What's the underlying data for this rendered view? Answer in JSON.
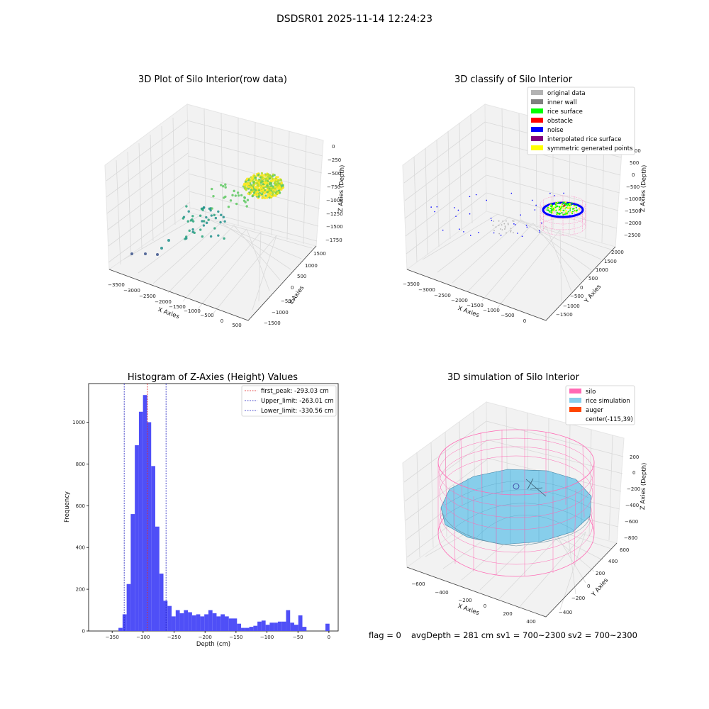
{
  "figure": {
    "suptitle": "DSDSR01 2025-11-14 12:24:23",
    "status_line": {
      "flag": "flag = 0",
      "avg_depth": "avgDepth = 281 cm",
      "sv1": "sv1 = 700~2300",
      "sv2": "sv2 = 700~2300"
    }
  },
  "chart_data": [
    {
      "type": "scatter",
      "title": "3D Plot of Silo Interior(row data)",
      "xlabel": "X Axies",
      "ylabel": "Y Axies",
      "zlabel": "Z Axies (Depth)",
      "x_ticks": [
        "−3500",
        "−3000",
        "−2500",
        "−2000",
        "−1500",
        "−1000",
        "−500",
        "0",
        "500"
      ],
      "y_ticks": [
        "−1500",
        "−1000",
        "−500",
        "0",
        "500",
        "1000",
        "1500"
      ],
      "z_ticks": [
        "0",
        "−250",
        "−500",
        "−750",
        "−1000",
        "−1250",
        "−1500",
        "−1750"
      ],
      "grid": true,
      "colormap": [
        "#440154",
        "#3b528b",
        "#21918c",
        "#5ec962",
        "#fde725"
      ]
    },
    {
      "type": "scatter",
      "title": "3D classify of Silo Interior",
      "xlabel": "X Axies",
      "ylabel": "Y Axies",
      "zlabel": "Z Axies (Depth)",
      "x_ticks": [
        "−3500",
        "−3000",
        "−2500",
        "−2000",
        "−1500",
        "−1000",
        "−500",
        "0"
      ],
      "y_ticks": [
        "−1500",
        "−1000",
        "−500",
        "0",
        "500",
        "1000",
        "1500",
        "2000"
      ],
      "z_ticks": [
        "1000",
        "500",
        "0",
        "−500",
        "−1000",
        "−1500",
        "−2000",
        "−2500"
      ],
      "grid": true,
      "legend_position": "top-right",
      "legend": [
        {
          "label": "original data",
          "color": "#b3b3b3"
        },
        {
          "label": "inner wall",
          "color": "#808080"
        },
        {
          "label": "rice surface",
          "color": "#00ff00"
        },
        {
          "label": "obstacle",
          "color": "#ff0000"
        },
        {
          "label": "noise",
          "color": "#0000ff"
        },
        {
          "label": "interpolated rice surface",
          "color": "#800080"
        },
        {
          "label": "symmetric generated points",
          "color": "#ffff00"
        }
      ]
    },
    {
      "type": "bar",
      "title": "Histogram of Z-Axies (Height) Values",
      "xlabel": "Depth (cm)",
      "ylabel": "Frequency",
      "xlim": [
        -388,
        15
      ],
      "ylim": [
        0,
        1185
      ],
      "x_ticks": [
        -350,
        -300,
        -250,
        -200,
        -150,
        -100,
        -50,
        0
      ],
      "y_ticks": [
        0,
        200,
        400,
        600,
        800,
        1000
      ],
      "bin_width": 6.6,
      "bins": [
        {
          "x": -336.5,
          "v": 15
        },
        {
          "x": -329.9,
          "v": 80
        },
        {
          "x": -323.3,
          "v": 225
        },
        {
          "x": -316.7,
          "v": 560
        },
        {
          "x": -310.1,
          "v": 890
        },
        {
          "x": -303.5,
          "v": 1050
        },
        {
          "x": -296.9,
          "v": 1130
        },
        {
          "x": -290.3,
          "v": 1000
        },
        {
          "x": -283.7,
          "v": 790
        },
        {
          "x": -277.1,
          "v": 500
        },
        {
          "x": -270.5,
          "v": 275
        },
        {
          "x": -263.9,
          "v": 145
        },
        {
          "x": -257.3,
          "v": 120
        },
        {
          "x": -250.7,
          "v": 70
        },
        {
          "x": -244.1,
          "v": 100
        },
        {
          "x": -237.5,
          "v": 85
        },
        {
          "x": -230.9,
          "v": 100
        },
        {
          "x": -224.3,
          "v": 90
        },
        {
          "x": -217.7,
          "v": 75
        },
        {
          "x": -211.1,
          "v": 80
        },
        {
          "x": -204.5,
          "v": 70
        },
        {
          "x": -197.9,
          "v": 80
        },
        {
          "x": -191.3,
          "v": 100
        },
        {
          "x": -184.7,
          "v": 85
        },
        {
          "x": -178.1,
          "v": 70
        },
        {
          "x": -171.5,
          "v": 80
        },
        {
          "x": -164.9,
          "v": 70
        },
        {
          "x": -158.3,
          "v": 60
        },
        {
          "x": -151.7,
          "v": 60
        },
        {
          "x": -145.1,
          "v": 35
        },
        {
          "x": -138.5,
          "v": 15
        },
        {
          "x": -131.9,
          "v": 15
        },
        {
          "x": -125.3,
          "v": 20
        },
        {
          "x": -118.7,
          "v": 25
        },
        {
          "x": -112.1,
          "v": 45
        },
        {
          "x": -105.5,
          "v": 50
        },
        {
          "x": -98.9,
          "v": 30
        },
        {
          "x": -92.3,
          "v": 40
        },
        {
          "x": -85.7,
          "v": 40
        },
        {
          "x": -79.1,
          "v": 45
        },
        {
          "x": -72.5,
          "v": 45
        },
        {
          "x": -65.9,
          "v": 100
        },
        {
          "x": -59.3,
          "v": 40
        },
        {
          "x": -52.7,
          "v": 30
        },
        {
          "x": -46.1,
          "v": 75
        },
        {
          "x": -39.5,
          "v": 20
        },
        {
          "x": -2.3,
          "v": 35
        }
      ],
      "bar_color": "#4f4ff7",
      "vlines": [
        {
          "label": "first_peak: -293.03 cm",
          "x": -293.03,
          "color": "#e02020"
        },
        {
          "label": "Upper_limit: -263.01 cm",
          "x": -263.01,
          "color": "#2020c0"
        },
        {
          "label": "Lower_limit: -330.56 cm",
          "x": -330.56,
          "color": "#2020c0"
        }
      ],
      "legend_position": "top-right",
      "grid": false
    },
    {
      "type": "scatter",
      "title": "3D simulation of Silo Interior",
      "xlabel": "X Axies",
      "ylabel": "Y Axies",
      "zlabel": "Z Axies (Depth)",
      "x_ticks": [
        "−600",
        "−400",
        "−200",
        "0",
        "200",
        "400"
      ],
      "y_ticks": [
        "−400",
        "−200",
        "0",
        "200",
        "400",
        "600"
      ],
      "z_ticks": [
        "200",
        "0",
        "−200",
        "−400",
        "−600",
        "−800"
      ],
      "grid": true,
      "legend_position": "top-right",
      "legend": [
        {
          "label": "silo",
          "color": "#ff69b4",
          "patch": true
        },
        {
          "label": "rice simulation",
          "color": "#87ceeb",
          "patch": true
        },
        {
          "label": "auger",
          "color": "#ff4500",
          "patch": true
        },
        {
          "label": "center(-115,39)",
          "color": "#ffffff",
          "patch": false
        }
      ]
    }
  ]
}
